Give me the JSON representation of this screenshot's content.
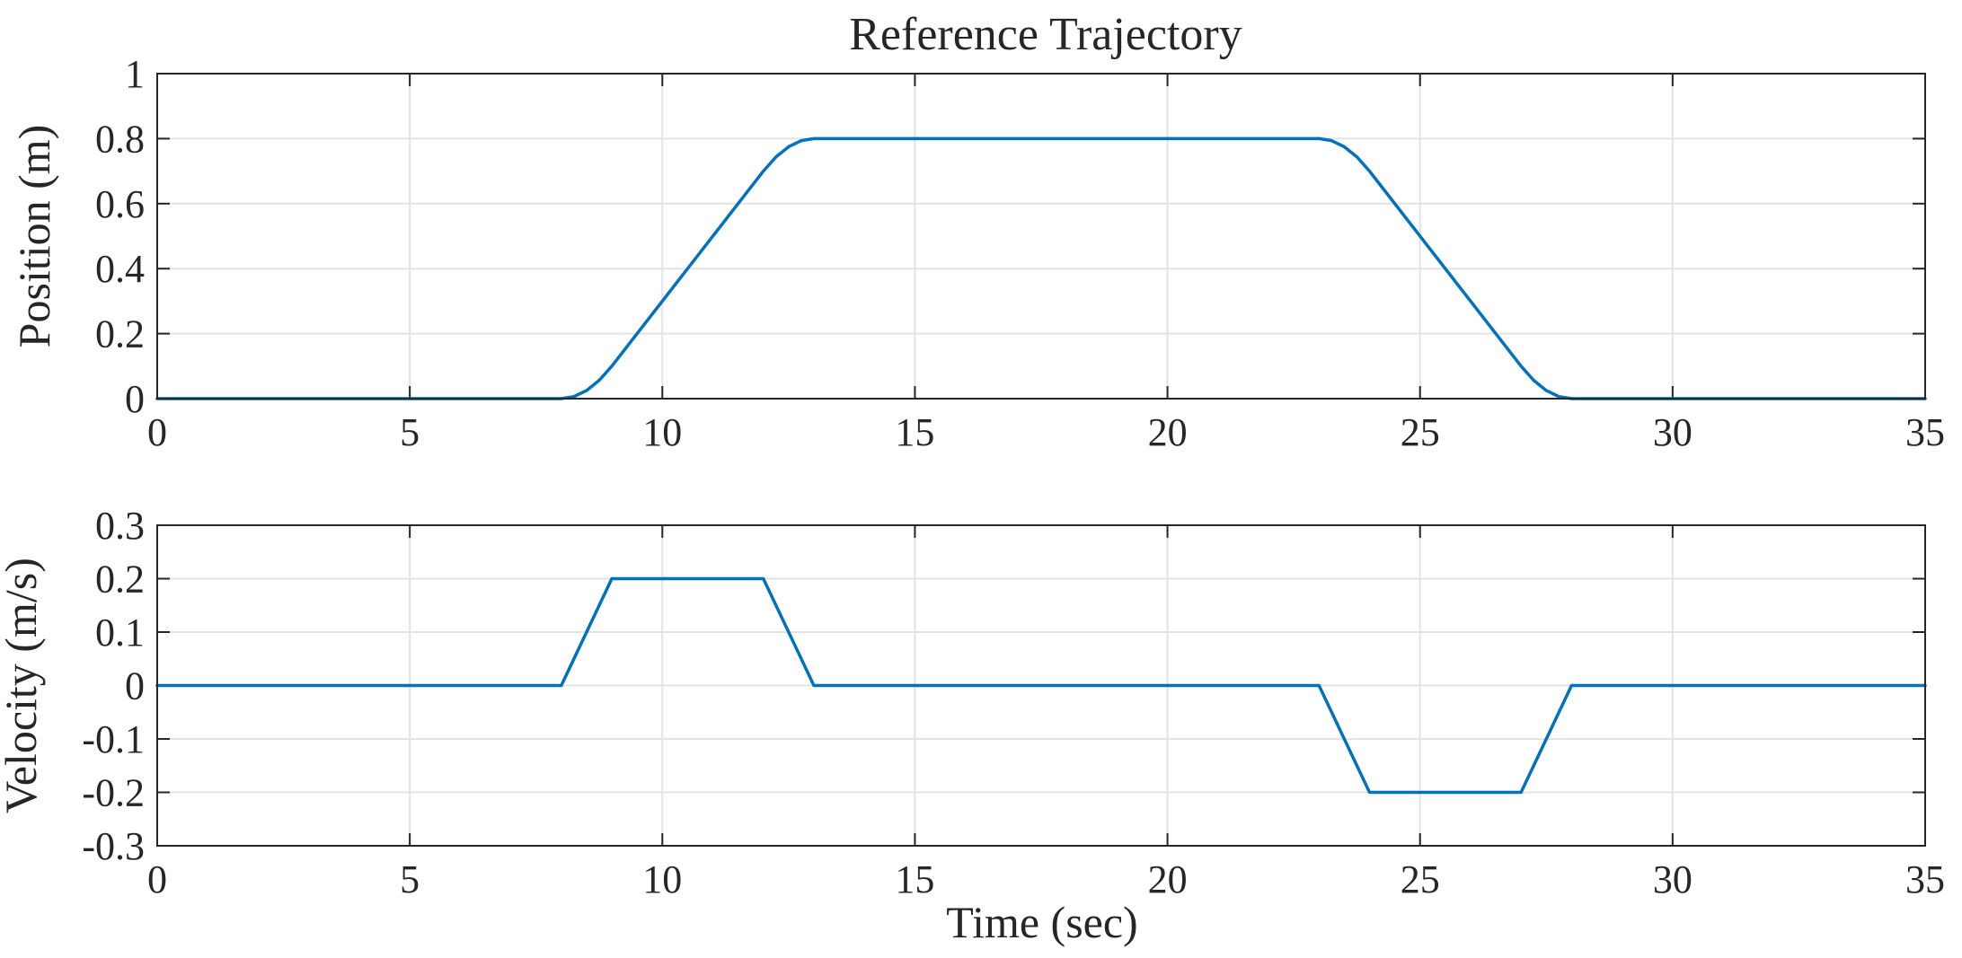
{
  "figure": {
    "title": "Reference Trajectory",
    "xlabel": "Time (sec)"
  },
  "colors": {
    "series": "#0072bd",
    "axis": "#262626",
    "grid": "#e3e3e3",
    "background": "#ffffff"
  },
  "chart_data": [
    {
      "type": "line",
      "title": "Reference Trajectory",
      "xlabel": "",
      "ylabel": "Position (m)",
      "xlim": [
        0,
        35
      ],
      "ylim": [
        0,
        1
      ],
      "grid": true,
      "xticks": [
        0,
        5,
        10,
        15,
        20,
        25,
        30,
        35
      ],
      "xtick_labels": [
        "0",
        "5",
        "10",
        "15",
        "20",
        "25",
        "30",
        "35"
      ],
      "yticks": [
        0,
        0.2,
        0.4,
        0.6,
        0.8,
        1
      ],
      "ytick_labels": [
        "0",
        "0.2",
        "0.4",
        "0.6",
        "0.8",
        "1"
      ],
      "series": [
        {
          "x": [
            0,
            8,
            8.25,
            8.5,
            8.75,
            9,
            12,
            12.25,
            12.5,
            12.75,
            13,
            23,
            23.25,
            23.5,
            23.75,
            24,
            27,
            27.25,
            27.5,
            27.75,
            28,
            35
          ],
          "y": [
            0,
            0,
            0.00625,
            0.025,
            0.05625,
            0.1,
            0.7,
            0.74375,
            0.775,
            0.79375,
            0.8,
            0.8,
            0.79375,
            0.775,
            0.74375,
            0.7,
            0.1,
            0.05625,
            0.025,
            0.00625,
            0,
            0
          ]
        }
      ]
    },
    {
      "type": "line",
      "title": "",
      "xlabel": "Time (sec)",
      "ylabel": "Velocity (m/s)",
      "xlim": [
        0,
        35
      ],
      "ylim": [
        -0.3,
        0.3
      ],
      "grid": true,
      "xticks": [
        0,
        5,
        10,
        15,
        20,
        25,
        30,
        35
      ],
      "xtick_labels": [
        "0",
        "5",
        "10",
        "15",
        "20",
        "25",
        "30",
        "35"
      ],
      "yticks": [
        -0.3,
        -0.2,
        -0.1,
        0,
        0.1,
        0.2,
        0.3
      ],
      "ytick_labels": [
        "-0.3",
        "-0.2",
        "-0.1",
        "0",
        "0.1",
        "0.2",
        "0.3"
      ],
      "series": [
        {
          "x": [
            0,
            8,
            9,
            12,
            13,
            23,
            24,
            27,
            28,
            35
          ],
          "y": [
            0,
            0,
            0.2,
            0.2,
            0,
            0,
            -0.2,
            -0.2,
            0,
            0
          ]
        }
      ]
    }
  ]
}
